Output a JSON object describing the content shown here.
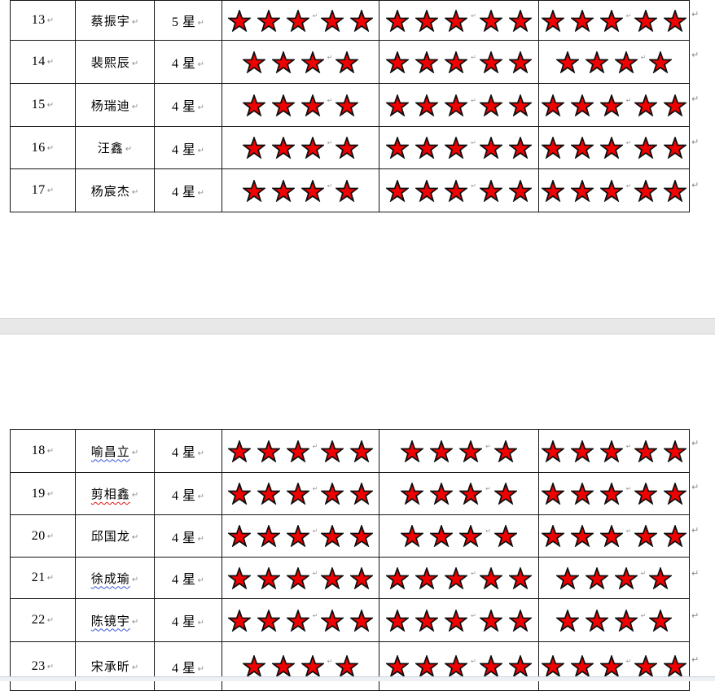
{
  "marks": {
    "cell_end": "↵",
    "row_end": "↵"
  },
  "colors": {
    "star_fill": "#ee0100",
    "star_stroke": "#0d0d0d",
    "table_border": "#151515",
    "squiggle_blue": "#3a56d4",
    "squiggle_red": "#e01414",
    "page_gap": "#e8e8e8"
  },
  "page1": {
    "rows": [
      {
        "num": "13",
        "name": "蔡振宇",
        "level": "5 星",
        "stars": [
          5,
          5,
          5
        ],
        "underline": "none"
      },
      {
        "num": "14",
        "name": "裴熙辰",
        "level": "4 星",
        "stars": [
          4,
          5,
          4
        ],
        "underline": "none"
      },
      {
        "num": "15",
        "name": "杨瑞迪",
        "level": "4 星",
        "stars": [
          4,
          5,
          5
        ],
        "underline": "none"
      },
      {
        "num": "16",
        "name": "汪鑫",
        "level": "4 星",
        "stars": [
          4,
          5,
          5
        ],
        "underline": "none"
      },
      {
        "num": "17",
        "name": "杨宸杰",
        "level": "4 星",
        "stars": [
          4,
          5,
          5
        ],
        "underline": "none"
      }
    ]
  },
  "page2": {
    "rows": [
      {
        "num": "18",
        "name": "喻昌立",
        "level": "4 星",
        "stars": [
          5,
          4,
          5
        ],
        "underline": "blue"
      },
      {
        "num": "19",
        "name": "剪相鑫",
        "level": "4 星",
        "stars": [
          5,
          4,
          5
        ],
        "underline": "red"
      },
      {
        "num": "20",
        "name": "邱国龙",
        "level": "4 星",
        "stars": [
          5,
          4,
          5
        ],
        "underline": "none"
      },
      {
        "num": "21",
        "name": "徐成瑜",
        "level": "4 星",
        "stars": [
          5,
          5,
          4
        ],
        "underline": "blue"
      },
      {
        "num": "22",
        "name": "陈镜宇",
        "level": "4 星",
        "stars": [
          5,
          5,
          4
        ],
        "underline": "blue"
      },
      {
        "num": "23",
        "name": "宋承昕",
        "level": "4 星",
        "stars": [
          4,
          5,
          5
        ],
        "underline": "none"
      }
    ]
  }
}
